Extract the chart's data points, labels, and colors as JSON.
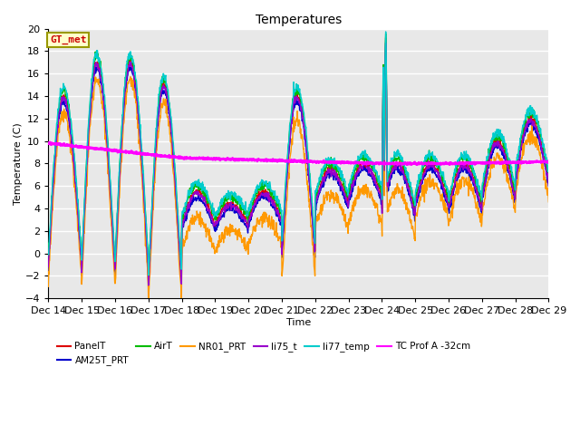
{
  "title": "Temperatures",
  "xlabel": "Time",
  "ylabel": "Temperature (C)",
  "ylim": [
    -4,
    20
  ],
  "annotation_text": "GT_met",
  "annotation_box_color": "#ffffcc",
  "annotation_border_color": "#999900",
  "annotation_text_color": "#cc0000",
  "bg_color": "#e8e8e8",
  "series": {
    "PanelT": {
      "color": "#dd0000",
      "lw": 1.0
    },
    "AM25T_PRT": {
      "color": "#0000cc",
      "lw": 1.0
    },
    "AirT": {
      "color": "#00bb00",
      "lw": 1.0
    },
    "NR01_PRT": {
      "color": "#ff9900",
      "lw": 1.0
    },
    "li75_t": {
      "color": "#9900cc",
      "lw": 1.0
    },
    "li77_temp": {
      "color": "#00cccc",
      "lw": 1.0
    },
    "TC Prof A -32cm": {
      "color": "#ff00ff",
      "lw": 2.0
    }
  },
  "n_points": 1500,
  "x_start": 14,
  "x_end": 29,
  "x_ticks": [
    14,
    15,
    16,
    17,
    18,
    19,
    20,
    21,
    22,
    23,
    24,
    25,
    26,
    27,
    28,
    29
  ],
  "x_tick_labels": [
    "Dec 14",
    "Dec 15",
    "Dec 16",
    "Dec 17",
    "Dec 18",
    "Dec 19",
    "Dec 20",
    "Dec 21",
    "Dec 22",
    "Dec 23",
    "Dec 24",
    "Dec 25",
    "Dec 26",
    "Dec 27",
    "Dec 28",
    "Dec 29"
  ],
  "figsize": [
    6.4,
    4.8
  ],
  "dpi": 100
}
